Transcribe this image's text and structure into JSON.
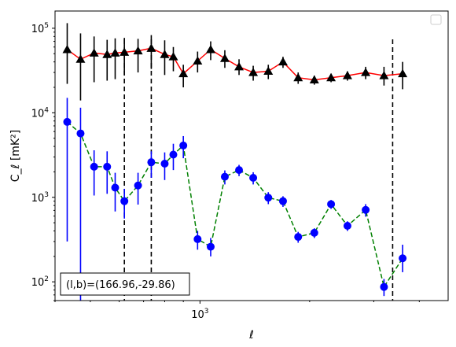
{
  "chart_data": {
    "type": "scatter",
    "title": "",
    "xlabel": "ℓ",
    "ylabel": "C_ℓ [mK²]",
    "x_scale": "log",
    "y_scale": "log",
    "xlim": [
      400,
      4800
    ],
    "ylim": [
      60,
      160000
    ],
    "x_tick_labels": [
      {
        "value": 1000,
        "base": "10",
        "exp": "3"
      }
    ],
    "y_tick_labels": [
      {
        "value": 100,
        "base": "10",
        "exp": "2"
      },
      {
        "value": 1000,
        "base": "10",
        "exp": "3"
      },
      {
        "value": 10000,
        "base": "10",
        "exp": "4"
      },
      {
        "value": 100000,
        "base": "10",
        "exp": "5"
      }
    ],
    "annotation": "(l,b)=(166.96,-29.86)",
    "legend_placement": "upper right",
    "vertical_lines": [
      620,
      735,
      3380
    ],
    "series": [
      {
        "marker": "triangle",
        "marker_color": "#000000",
        "line_color": "#ff0000",
        "line_style": "solid",
        "errorbar_color": "#000000",
        "points": [
          {
            "x": 432,
            "y": 56000,
            "lo": 22000,
            "hi": 115000
          },
          {
            "x": 470,
            "y": 43000,
            "lo": 14000,
            "hi": 87000
          },
          {
            "x": 512,
            "y": 51000,
            "lo": 23000,
            "hi": 80000
          },
          {
            "x": 556,
            "y": 49000,
            "lo": 24000,
            "hi": 73000
          },
          {
            "x": 585,
            "y": 51000,
            "lo": 25000,
            "hi": 76000
          },
          {
            "x": 620,
            "y": 52000,
            "lo": 28000,
            "hi": 77000
          },
          {
            "x": 676,
            "y": 54000,
            "lo": 30000,
            "hi": 75000
          },
          {
            "x": 735,
            "y": 58000,
            "lo": 33000,
            "hi": 83000
          },
          {
            "x": 800,
            "y": 49000,
            "lo": 28000,
            "hi": 72000
          },
          {
            "x": 845,
            "y": 46000,
            "lo": 31000,
            "hi": 60000
          },
          {
            "x": 900,
            "y": 29000,
            "lo": 20000,
            "hi": 37000
          },
          {
            "x": 985,
            "y": 41000,
            "lo": 30000,
            "hi": 53000
          },
          {
            "x": 1070,
            "y": 56000,
            "lo": 42000,
            "hi": 70000
          },
          {
            "x": 1170,
            "y": 44000,
            "lo": 34000,
            "hi": 55000
          },
          {
            "x": 1280,
            "y": 35000,
            "lo": 28000,
            "hi": 43000
          },
          {
            "x": 1400,
            "y": 30000,
            "lo": 24000,
            "hi": 36000
          },
          {
            "x": 1540,
            "y": 31000,
            "lo": 25000,
            "hi": 37000
          },
          {
            "x": 1690,
            "y": 40000,
            "lo": 34000,
            "hi": 46000
          },
          {
            "x": 1860,
            "y": 26000,
            "lo": 22000,
            "hi": 30000
          },
          {
            "x": 2060,
            "y": 24500,
            "lo": 21500,
            "hi": 27500
          },
          {
            "x": 2290,
            "y": 26000,
            "lo": 23000,
            "hi": 29000
          },
          {
            "x": 2540,
            "y": 27500,
            "lo": 24000,
            "hi": 31000
          },
          {
            "x": 2850,
            "y": 30000,
            "lo": 25000,
            "hi": 35000
          },
          {
            "x": 3200,
            "y": 27500,
            "lo": 21000,
            "hi": 35000
          },
          {
            "x": 3600,
            "y": 29000,
            "lo": 19000,
            "hi": 40000
          }
        ]
      },
      {
        "marker": "circle",
        "marker_color": "#0000ff",
        "line_color": "#008000",
        "line_style": "dashed",
        "errorbar_color": "#0000ff",
        "points": [
          {
            "x": 432,
            "y": 7800,
            "lo": 300,
            "hi": 15000
          },
          {
            "x": 470,
            "y": 5700,
            "lo": 60,
            "hi": 11500
          },
          {
            "x": 512,
            "y": 2300,
            "lo": 1050,
            "hi": 3600
          },
          {
            "x": 556,
            "y": 2300,
            "lo": 1100,
            "hi": 3500
          },
          {
            "x": 585,
            "y": 1300,
            "lo": 680,
            "hi": 1950
          },
          {
            "x": 620,
            "y": 900,
            "lo": 560,
            "hi": 1260
          },
          {
            "x": 676,
            "y": 1380,
            "lo": 820,
            "hi": 1950
          },
          {
            "x": 735,
            "y": 2600,
            "lo": 1700,
            "hi": 3500
          },
          {
            "x": 800,
            "y": 2500,
            "lo": 1600,
            "hi": 3400
          },
          {
            "x": 845,
            "y": 3200,
            "lo": 2100,
            "hi": 4300
          },
          {
            "x": 900,
            "y": 4100,
            "lo": 2900,
            "hi": 5300
          },
          {
            "x": 985,
            "y": 320,
            "lo": 240,
            "hi": 400
          },
          {
            "x": 1070,
            "y": 260,
            "lo": 200,
            "hi": 330
          },
          {
            "x": 1170,
            "y": 1750,
            "lo": 1420,
            "hi": 2080
          },
          {
            "x": 1280,
            "y": 2100,
            "lo": 1780,
            "hi": 2420
          },
          {
            "x": 1400,
            "y": 1700,
            "lo": 1420,
            "hi": 1980
          },
          {
            "x": 1540,
            "y": 990,
            "lo": 830,
            "hi": 1150
          },
          {
            "x": 1690,
            "y": 900,
            "lo": 770,
            "hi": 1030
          },
          {
            "x": 1860,
            "y": 340,
            "lo": 290,
            "hi": 390
          },
          {
            "x": 2060,
            "y": 380,
            "lo": 330,
            "hi": 430
          },
          {
            "x": 2290,
            "y": 830,
            "lo": 730,
            "hi": 930
          },
          {
            "x": 2540,
            "y": 460,
            "lo": 400,
            "hi": 520
          },
          {
            "x": 2850,
            "y": 710,
            "lo": 590,
            "hi": 830
          },
          {
            "x": 3200,
            "y": 87,
            "lo": 68,
            "hi": 108
          },
          {
            "x": 3600,
            "y": 190,
            "lo": 130,
            "hi": 275
          }
        ]
      }
    ]
  }
}
